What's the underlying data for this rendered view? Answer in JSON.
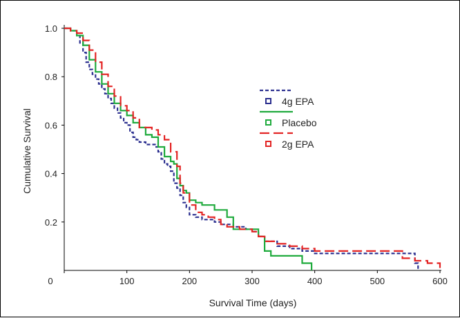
{
  "chart_data": {
    "type": "line",
    "title": "",
    "xlabel": "Survival Time (days)",
    "ylabel": "Cumulative Survival",
    "xlim": [
      0,
      600
    ],
    "ylim": [
      0,
      1.0
    ],
    "x_ticks": [
      0,
      100,
      200,
      300,
      400,
      500,
      600
    ],
    "x_tick_labels": [
      "0",
      "100",
      "200",
      "300",
      "400",
      "500",
      "600"
    ],
    "y_ticks": [
      0.2,
      0.4,
      0.6,
      0.8,
      1.0
    ],
    "y_tick_labels": [
      "0.2",
      "0.4",
      "0.6",
      "0.8",
      "1.0"
    ],
    "grid": false,
    "legend_position": "right-center",
    "series": [
      {
        "name": "4g EPA",
        "color": "#2b2f8f",
        "line_style": "short-dash",
        "x": [
          0,
          10,
          20,
          25,
          30,
          35,
          40,
          45,
          50,
          55,
          60,
          65,
          70,
          75,
          80,
          85,
          90,
          95,
          100,
          105,
          110,
          115,
          120,
          125,
          130,
          135,
          140,
          145,
          150,
          155,
          160,
          165,
          170,
          175,
          180,
          185,
          190,
          195,
          200,
          210,
          220,
          230,
          240,
          250,
          260,
          270,
          280,
          290,
          300,
          310,
          320,
          340,
          360,
          380,
          400,
          450,
          500,
          540,
          560,
          565
        ],
        "y": [
          1.0,
          0.99,
          0.97,
          0.94,
          0.9,
          0.86,
          0.83,
          0.81,
          0.79,
          0.77,
          0.75,
          0.73,
          0.71,
          0.69,
          0.67,
          0.65,
          0.63,
          0.61,
          0.6,
          0.57,
          0.55,
          0.54,
          0.53,
          0.53,
          0.52,
          0.52,
          0.52,
          0.51,
          0.49,
          0.46,
          0.44,
          0.43,
          0.41,
          0.36,
          0.34,
          0.31,
          0.28,
          0.26,
          0.23,
          0.22,
          0.21,
          0.21,
          0.2,
          0.19,
          0.19,
          0.18,
          0.18,
          0.17,
          0.16,
          0.14,
          0.12,
          0.1,
          0.09,
          0.08,
          0.07,
          0.07,
          0.07,
          0.07,
          0.03,
          0.0
        ]
      },
      {
        "name": "Placebo",
        "color": "#1eaa3c",
        "line_style": "solid",
        "x": [
          0,
          10,
          20,
          30,
          40,
          50,
          60,
          70,
          80,
          90,
          100,
          110,
          120,
          130,
          140,
          150,
          160,
          170,
          175,
          180,
          185,
          190,
          195,
          200,
          210,
          220,
          225,
          240,
          250,
          260,
          270,
          280,
          290,
          300,
          310,
          320,
          330,
          360,
          380,
          395
        ],
        "y": [
          1.0,
          0.99,
          0.97,
          0.93,
          0.87,
          0.82,
          0.77,
          0.73,
          0.69,
          0.66,
          0.64,
          0.61,
          0.59,
          0.56,
          0.55,
          0.51,
          0.47,
          0.45,
          0.44,
          0.38,
          0.35,
          0.33,
          0.32,
          0.29,
          0.28,
          0.27,
          0.27,
          0.25,
          0.25,
          0.22,
          0.17,
          0.17,
          0.17,
          0.17,
          0.14,
          0.08,
          0.06,
          0.06,
          0.03,
          0.0
        ]
      },
      {
        "name": "2g EPA",
        "color": "#e32323",
        "line_style": "long-dash",
        "x": [
          0,
          10,
          20,
          30,
          40,
          50,
          60,
          70,
          80,
          90,
          100,
          110,
          120,
          130,
          140,
          150,
          160,
          170,
          180,
          185,
          190,
          200,
          210,
          220,
          230,
          240,
          250,
          260,
          270,
          280,
          290,
          300,
          310,
          320,
          340,
          360,
          380,
          400,
          450,
          500,
          540,
          560,
          580,
          600
        ],
        "y": [
          1.0,
          0.99,
          0.98,
          0.95,
          0.91,
          0.86,
          0.81,
          0.76,
          0.72,
          0.68,
          0.66,
          0.63,
          0.59,
          0.59,
          0.58,
          0.56,
          0.54,
          0.49,
          0.43,
          0.36,
          0.32,
          0.27,
          0.24,
          0.23,
          0.22,
          0.21,
          0.19,
          0.18,
          0.18,
          0.17,
          0.17,
          0.16,
          0.14,
          0.12,
          0.11,
          0.1,
          0.09,
          0.08,
          0.08,
          0.08,
          0.05,
          0.04,
          0.03,
          0.01
        ]
      }
    ]
  }
}
